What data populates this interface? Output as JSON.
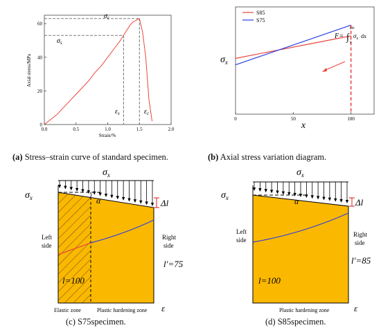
{
  "panel_a": {
    "ylabel": "Axial stress/MPa",
    "xlabel": "Strain/%",
    "y_ticks": [
      "0",
      "20",
      "40",
      "60"
    ],
    "x_ticks": [
      "0.0",
      "0.5",
      "1.0",
      "1.5",
      "2.0"
    ],
    "sigma_c": "σ",
    "sigma_c_sub": "c",
    "sigma_s": "σ",
    "sigma_s_sub": "s",
    "eps_s": "ε",
    "eps_s_sub": "s",
    "eps_c": "ε",
    "eps_c_sub": "c",
    "caption_tag": "(a)",
    "caption": " Stress–strain curve of standard specimen."
  },
  "panel_b": {
    "ylabel": "σ",
    "ylabel_sub": "x",
    "xlabel": "x",
    "x_ticks": [
      "0",
      "50",
      "100"
    ],
    "legend": [
      "S85",
      "S75"
    ],
    "formula_F": "F",
    "formula_eq": "=",
    "formula_upper": "100",
    "formula_lower": "0",
    "formula_body": "σ",
    "formula_body_sub": "x",
    "formula_dx": "dx",
    "caption_tag": "(b)",
    "caption": " Axial stress variation diagram."
  },
  "panel_c": {
    "top_label": "σ",
    "top_label_sub": "x",
    "y_label": "σ",
    "y_label_sub": "x",
    "alpha": "α",
    "delta": "Δl",
    "left_side": [
      "Left",
      "side"
    ],
    "right_side": [
      "Right",
      "side"
    ],
    "l_label": "l=100",
    "lp_label": "l′=75",
    "zone1": "Elastic zone",
    "zone2": "Plastic hardening zone",
    "eps": "ε",
    "caption": "(c) S75specimen."
  },
  "panel_d": {
    "top_label": "σ",
    "top_label_sub": "x",
    "y_label": "σ",
    "y_label_sub": "x",
    "alpha": "α",
    "delta": "Δl",
    "left_side": [
      "Left",
      "side"
    ],
    "right_side": [
      "Right",
      "side"
    ],
    "l_label": "l=100",
    "lp_label": "l′=85",
    "zone2": "Plastic hardening zone",
    "eps": "ε",
    "caption": "(d) S85specimen."
  },
  "colors": {
    "red_curve": "#e8463c",
    "blue_line": "#2b3fe0",
    "orange_fill": "#fbb800",
    "dashed_red": "#e01818"
  },
  "chart_data": [
    {
      "type": "line",
      "xlabel": "Strain/%",
      "ylabel": "Axial stress/MPa",
      "xlim": [
        0,
        2.0
      ],
      "ylim": [
        0,
        65
      ],
      "x_ticks": [
        0.0,
        0.5,
        1.0,
        1.5,
        2.0
      ],
      "y_ticks": [
        0,
        20,
        40,
        60
      ],
      "series": [
        {
          "x": [
            0.0,
            0.1,
            0.2,
            0.3,
            0.4,
            0.5,
            0.6,
            0.7,
            0.8,
            0.9,
            1.0,
            1.1,
            1.2,
            1.25,
            1.3,
            1.35,
            1.4,
            1.45,
            1.5,
            1.55,
            1.6,
            1.65,
            1.7
          ],
          "y": [
            0,
            3,
            6,
            10,
            14,
            18,
            22,
            26,
            31,
            35,
            40,
            45,
            50,
            53,
            56,
            59,
            61,
            62,
            63,
            55,
            40,
            15,
            2
          ]
        }
      ],
      "annotations": [
        {
          "label": "σc",
          "y": 63
        },
        {
          "label": "σs",
          "y": 53
        },
        {
          "label": "εs",
          "x": 1.25
        },
        {
          "label": "εc",
          "x": 1.5
        }
      ]
    },
    {
      "type": "line",
      "xlabel": "x",
      "ylabel": "σx",
      "xlim": [
        0,
        120
      ],
      "x_ticks": [
        0,
        50,
        100
      ],
      "series": [
        {
          "name": "S85",
          "x": [
            0,
            100
          ],
          "y": [
            0.52,
            0.73
          ]
        },
        {
          "name": "S75",
          "x": [
            0,
            100
          ],
          "y": [
            0.46,
            0.83
          ]
        }
      ]
    }
  ]
}
